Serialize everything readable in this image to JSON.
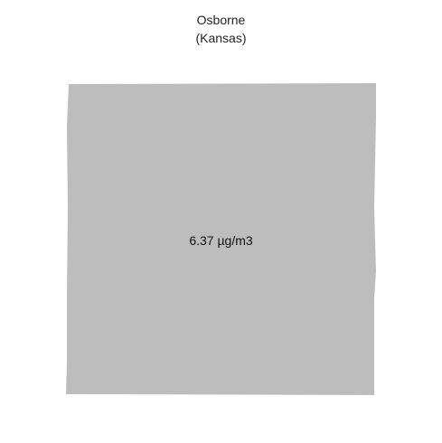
{
  "map": {
    "title": "Osborne",
    "subtitle": "(Kansas)",
    "region_fill": "#bdbdbd",
    "value_label": "6.37 µg/m3"
  }
}
